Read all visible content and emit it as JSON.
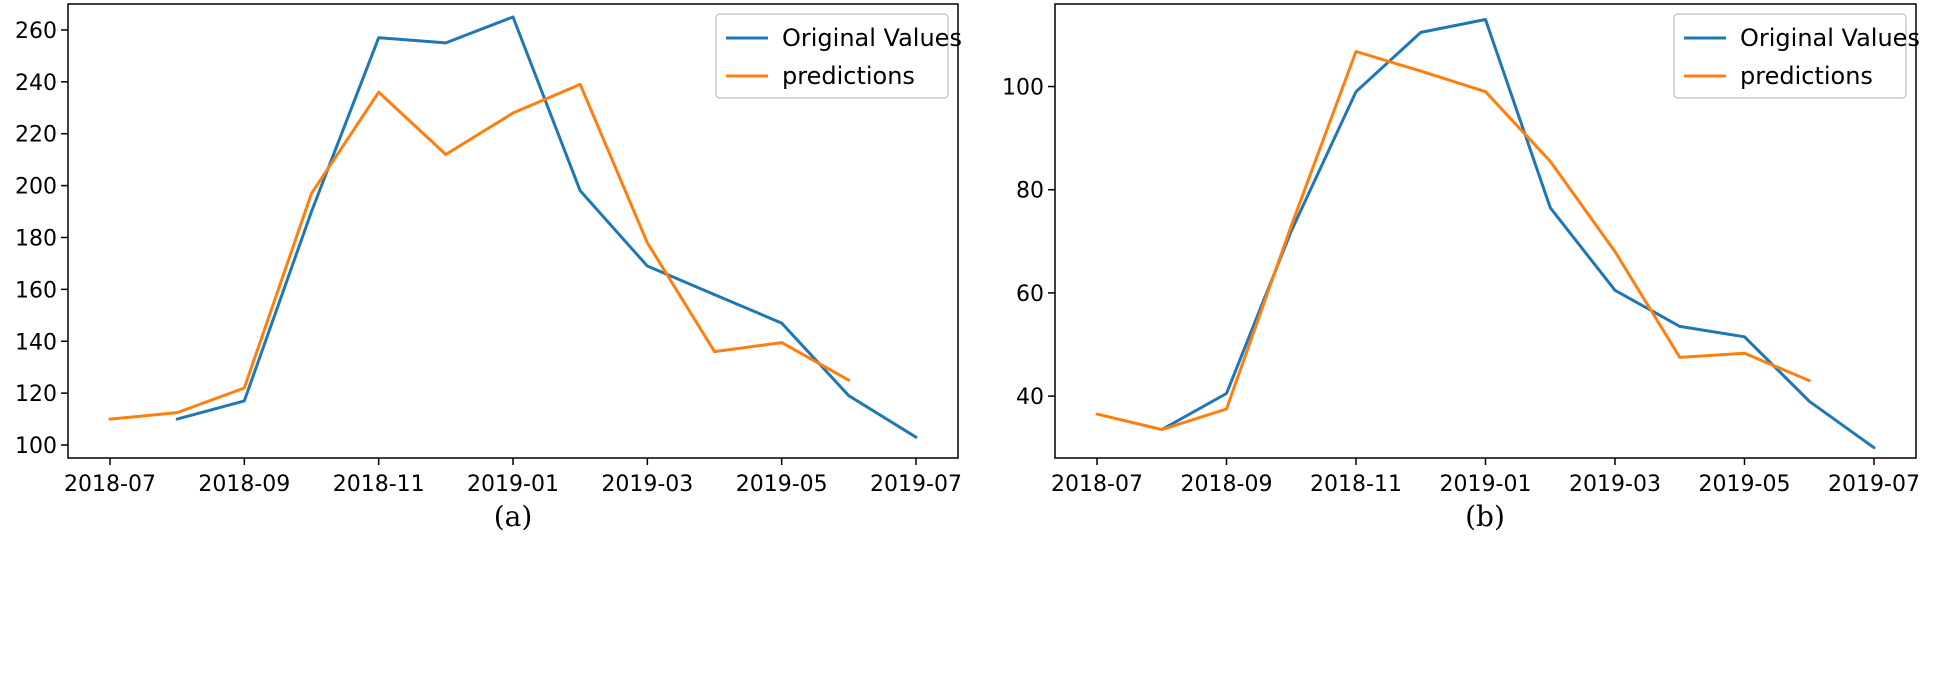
{
  "colors": {
    "original": "#1f77b4",
    "predictions": "#ff7f0e"
  },
  "chart_data": [
    {
      "type": "line",
      "caption": "(a)",
      "x": [
        "2018-07",
        "2018-08",
        "2018-09",
        "2018-10",
        "2018-11",
        "2018-12",
        "2019-01",
        "2019-02",
        "2019-03",
        "2019-04",
        "2019-05",
        "2019-06",
        "2019-07"
      ],
      "xticks": [
        "2018-07",
        "2018-09",
        "2018-11",
        "2019-01",
        "2019-03",
        "2019-05",
        "2019-07"
      ],
      "yticks": [
        100,
        120,
        140,
        160,
        180,
        200,
        220,
        240,
        260
      ],
      "ylim": [
        95,
        270
      ],
      "legend_position": "top-right",
      "grid": false,
      "series": [
        {
          "name": "Original Values",
          "values": [
            null,
            110,
            117,
            190,
            257,
            255,
            265,
            198,
            169,
            158,
            147,
            119,
            103
          ]
        },
        {
          "name": "predictions",
          "values": [
            110,
            112.5,
            122,
            197,
            236,
            212,
            228,
            239,
            178,
            136,
            139.5,
            125,
            null
          ]
        }
      ]
    },
    {
      "type": "line",
      "caption": "(b)",
      "x": [
        "2018-07",
        "2018-08",
        "2018-09",
        "2018-10",
        "2018-11",
        "2018-12",
        "2019-01",
        "2019-02",
        "2019-03",
        "2019-04",
        "2019-05",
        "2019-06",
        "2019-07"
      ],
      "xticks": [
        "2018-07",
        "2018-09",
        "2018-11",
        "2019-01",
        "2019-03",
        "2019-05",
        "2019-07"
      ],
      "yticks": [
        40,
        60,
        80,
        100
      ],
      "ylim": [
        28,
        116
      ],
      "legend_position": "top-right",
      "grid": false,
      "series": [
        {
          "name": "Original Values",
          "values": [
            null,
            33.5,
            40.5,
            72,
            99,
            110.5,
            113,
            76.5,
            60.5,
            53.5,
            51.5,
            39,
            30
          ]
        },
        {
          "name": "predictions",
          "values": [
            36.5,
            33.5,
            37.5,
            73,
            106.8,
            103,
            99,
            85.5,
            68,
            47.5,
            48.3,
            43,
            null
          ]
        }
      ]
    }
  ]
}
